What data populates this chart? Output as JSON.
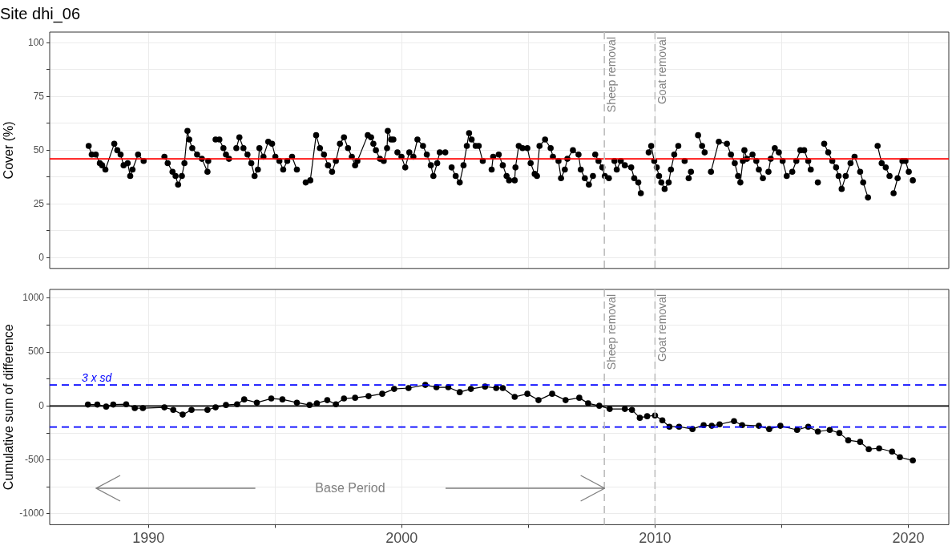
{
  "chart_data": [
    {
      "type": "line",
      "title": "Site dhi_06",
      "ylabel": "Cover (%)",
      "marker": "circle",
      "grid": true,
      "tick_labels": "y",
      "xlim": [
        1986.1,
        2021.6
      ],
      "xticks": [
        1990,
        {
          "value": 1995,
          "label": null
        },
        2000,
        {
          "value": 2005,
          "label": null
        },
        2010,
        {
          "value": 2015,
          "label": null
        },
        2020
      ],
      "ylim": [
        -5,
        105
      ],
      "yticks": [
        0,
        {
          "value": 12.5,
          "label": null
        },
        25,
        {
          "value": 37.5,
          "label": null
        },
        50,
        {
          "value": 62.5,
          "label": null
        },
        75,
        {
          "value": 87.5,
          "label": null
        },
        100
      ],
      "ref_lines": [
        {
          "axis": "y",
          "value": 46,
          "color": "#ff0000",
          "line_style": "solid"
        },
        {
          "axis": "x",
          "value": 2008,
          "label": "Sheep removal",
          "color": "#bebebe",
          "line_style": "dashed"
        },
        {
          "axis": "x",
          "value": 2010,
          "label": "Goat removal",
          "color": "#bebebe",
          "line_style": "dashed"
        }
      ],
      "series": [
        {
          "color": "#000000",
          "x": [
            1987.64,
            1987.76,
            1987.92,
            1988.08,
            1988.17,
            1988.3,
            1988.65,
            1988.77,
            1988.9,
            1989.02,
            1989.18,
            1989.28,
            1989.37,
            1989.59,
            1989.81,
            1990.2,
            1990.63,
            1990.76,
            1990.95,
            1991.07,
            1991.17,
            1991.32,
            1991.42,
            1991.54,
            1991.61,
            1991.73,
            1991.92,
            1992.11,
            1992.33,
            1992.36,
            1992.5,
            1992.65,
            1992.8,
            1992.96,
            1993.06,
            1993.18,
            1993.3,
            1993.47,
            1993.59,
            1993.75,
            1993.91,
            1994.06,
            1994.19,
            1994.32,
            1994.38,
            1994.54,
            1994.73,
            1994.88,
            1995.01,
            1995.17,
            1995.32,
            1995.48,
            1995.67,
            1995.86,
            1996.0,
            1996.21,
            1996.39,
            1996.62,
            1996.77,
            1996.93,
            1997.09,
            1997.25,
            1997.4,
            1997.56,
            1997.72,
            1997.88,
            1998.03,
            1998.16,
            1998.25,
            1998.66,
            1998.79,
            1998.88,
            1998.98,
            1999.14,
            1999.29,
            1999.42,
            1999.45,
            1999.58,
            1999.67,
            1999.75,
            1999.83,
            1999.99,
            2000.14,
            2000.3,
            2000.46,
            2000.62,
            2000.84,
            2000.99,
            2001.15,
            2001.25,
            2001.4,
            2001.5,
            2001.72,
            2001.85,
            2001.97,
            2002.13,
            2002.29,
            2002.44,
            2002.57,
            2002.66,
            2002.76,
            2002.92,
            2003.04,
            2003.2,
            2003.4,
            2003.55,
            2003.61,
            2003.83,
            2003.99,
            2004.14,
            2004.24,
            2004.46,
            2004.49,
            2004.62,
            2004.77,
            2004.96,
            2005.09,
            2005.25,
            2005.34,
            2005.44,
            2005.66,
            2005.88,
            2005.97,
            2006.19,
            2006.29,
            2006.44,
            2006.54,
            2006.76,
            2006.98,
            2007.07,
            2007.23,
            2007.39,
            2007.55,
            2007.6,
            2007.64,
            2007.77,
            2007.92,
            2008.02,
            2008.18,
            2008.3,
            2008.4,
            2008.49,
            2008.65,
            2008.81,
            2009.06,
            2009.18,
            2009.34,
            2009.44,
            2009.6,
            2009.75,
            2009.85,
            2009.97,
            2010.07,
            2010.16,
            2010.25,
            2010.38,
            2010.54,
            2010.63,
            2010.76,
            2010.92,
            2011.05,
            2011.17,
            2011.25,
            2011.33,
            2011.42,
            2011.55,
            2011.7,
            2011.86,
            2011.96,
            2012.1,
            2012.21,
            2012.52,
            2012.84,
            2013.0,
            2013.15,
            2013.28,
            2013.37,
            2013.47,
            2013.53,
            2013.63,
            2013.85,
            2014.0,
            2014.1,
            2014.26,
            2014.37,
            2014.48,
            2014.57,
            2014.73,
            2014.89,
            2015.04,
            2015.2,
            2015.42,
            2015.58,
            2015.74,
            2015.89,
            2016.05,
            2016.15,
            2016.3,
            2016.43,
            2016.55,
            2016.68,
            2016.84,
            2017.0,
            2017.15,
            2017.25,
            2017.37,
            2017.53,
            2017.72,
            2017.88,
            2018.1,
            2018.22,
            2018.41,
            2018.6,
            2018.79,
            2018.95,
            2019.11,
            2019.26,
            2019.34,
            2019.42,
            2019.58,
            2019.77,
            2019.89,
            2020.02,
            2020.1,
            2020.18
          ],
          "values": [
            52,
            48,
            48,
            44,
            43,
            41,
            53,
            50,
            48,
            43,
            44,
            38,
            41,
            48,
            45,
            null,
            47,
            44,
            40,
            38,
            34,
            38,
            44,
            59,
            55,
            51,
            48,
            46,
            40,
            45,
            null,
            55,
            55,
            51,
            48,
            46,
            null,
            51,
            56,
            51,
            48,
            44,
            38,
            41,
            51,
            47,
            54,
            53,
            47,
            45,
            41,
            45,
            47,
            41,
            null,
            35,
            36,
            57,
            51,
            48,
            43,
            40,
            45,
            53,
            56,
            51,
            47,
            43,
            45,
            57,
            56,
            53,
            50,
            46,
            45,
            51,
            59,
            55,
            55,
            null,
            49,
            47,
            42,
            49,
            47,
            55,
            52,
            48,
            43,
            38,
            44,
            49,
            49,
            null,
            42,
            38,
            35,
            43,
            52,
            58,
            55,
            52,
            52,
            45,
            null,
            41,
            47,
            48,
            43,
            38,
            36,
            36,
            42,
            52,
            51,
            51,
            44,
            39,
            38,
            52,
            55,
            51,
            47,
            45,
            37,
            41,
            46,
            50,
            48,
            41,
            37,
            34,
            38,
            null,
            48,
            45,
            42,
            38,
            37,
            null,
            45,
            41,
            45,
            43,
            42,
            37,
            35,
            30,
            null,
            49,
            52,
            45,
            42,
            38,
            35,
            32,
            35,
            41,
            48,
            52,
            null,
            45,
            null,
            37,
            40,
            null,
            57,
            52,
            49,
            null,
            40,
            54,
            53,
            48,
            44,
            38,
            35,
            45,
            50,
            46,
            48,
            45,
            41,
            37,
            null,
            40,
            46,
            51,
            49,
            45,
            38,
            40,
            45,
            50,
            50,
            45,
            41,
            null,
            35,
            null,
            53,
            49,
            45,
            42,
            38,
            32,
            38,
            44,
            47,
            40,
            35,
            28,
            null,
            52,
            44,
            42,
            38,
            null,
            30,
            37,
            45,
            45,
            40,
            null,
            36
          ]
        }
      ]
    },
    {
      "type": "line",
      "ylabel": "Cumulative sum of difference",
      "marker": "circle",
      "grid": true,
      "xlim": [
        1986.1,
        2021.6
      ],
      "xticks": [
        1990,
        {
          "value": 1995,
          "label": null
        },
        2000,
        {
          "value": 2005,
          "label": null
        },
        2010,
        {
          "value": 2015,
          "label": null
        },
        2020
      ],
      "ylim": [
        -1100,
        1080
      ],
      "yticks": [
        -1000,
        {
          "value": -750,
          "label": null
        },
        -500,
        {
          "value": -250,
          "label": null
        },
        0,
        {
          "value": 250,
          "label": null
        },
        500,
        {
          "value": 750,
          "label": null
        },
        1000
      ],
      "ref_lines": [
        {
          "axis": "y",
          "value": 0,
          "color": "#000000",
          "line_style": "solid"
        },
        {
          "axis": "y",
          "value": 195,
          "label": "3 x sd",
          "color": "#0000ff",
          "line_style": "dashed"
        },
        {
          "axis": "y",
          "value": -195,
          "color": "#0000ff",
          "line_style": "dashed"
        },
        {
          "axis": "x",
          "value": 2008,
          "label": "Sheep removal",
          "color": "#bebebe",
          "line_style": "dashed"
        },
        {
          "axis": "x",
          "value": 2010,
          "label": "Goat removal",
          "color": "#bebebe",
          "line_style": "dashed"
        }
      ],
      "annotations": [
        "Base Period"
      ],
      "series": [
        {
          "color": "#000000",
          "x": [
            1987.61,
            1987.98,
            1988.33,
            1988.61,
            1989.12,
            1989.46,
            1989.78,
            1990.63,
            1990.98,
            1991.35,
            1991.7,
            1992.33,
            1992.65,
            1993.06,
            1993.5,
            1993.78,
            1994.28,
            1994.85,
            1995.29,
            1995.86,
            1996.36,
            1996.65,
            1997.06,
            1997.4,
            1997.72,
            1998.16,
            1998.69,
            1999.23,
            1999.7,
            2000.27,
            2000.93,
            2001.37,
            2001.84,
            2002.29,
            2002.73,
            2003.29,
            2003.73,
            2003.99,
            2004.46,
            2004.96,
            2005.4,
            2005.94,
            2006.47,
            2007.01,
            2007.36,
            2007.8,
            2008.21,
            2008.81,
            2009.09,
            2009.4,
            2009.69,
            2010.0,
            2010.29,
            2010.57,
            2010.95,
            2011.48,
            2011.92,
            2012.24,
            2012.55,
            2013.12,
            2013.44,
            2014.1,
            2014.51,
            2014.95,
            2015.61,
            2016.05,
            2016.43,
            2016.9,
            2017.28,
            2017.63,
            2018.1,
            2018.44,
            2018.85,
            2019.36,
            2019.67,
            2020.18
          ],
          "values": [
            13,
            13,
            -6,
            13,
            16,
            -20,
            -20,
            -13,
            -36,
            -80,
            -36,
            -36,
            -13,
            9,
            16,
            61,
            31,
            69,
            61,
            31,
            9,
            24,
            54,
            16,
            69,
            76,
            91,
            113,
            158,
            166,
            195,
            173,
            173,
            128,
            158,
            180,
            166,
            166,
            84,
            113,
            54,
            113,
            54,
            76,
            24,
            2,
            -28,
            -28,
            -36,
            -110,
            -95,
            -88,
            -133,
            -192,
            -192,
            -214,
            -177,
            -184,
            -170,
            -140,
            -177,
            -184,
            -214,
            -184,
            -222,
            -192,
            -237,
            -222,
            -251,
            -318,
            -333,
            -400,
            -393,
            -423,
            -475,
            -505
          ]
        }
      ]
    }
  ]
}
